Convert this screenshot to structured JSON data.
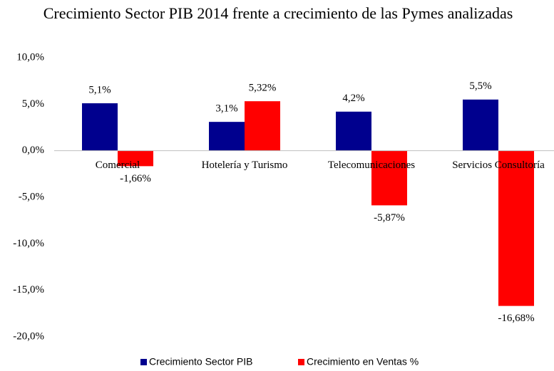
{
  "chart_data": {
    "type": "bar",
    "title": "Crecimiento Sector PIB 2014 frente a crecimiento de las Pymes analizadas",
    "categories": [
      "Comercial",
      "Hotelería y Turismo",
      "Telecomunicaciones",
      "Servicios Consultoría"
    ],
    "series": [
      {
        "name": "Crecimiento Sector PIB",
        "color": "#00008e",
        "values": [
          5.1,
          3.1,
          4.2,
          5.5
        ],
        "value_labels": [
          "5,1%",
          "3,1%",
          "4,2%",
          "5,5%"
        ]
      },
      {
        "name": "Crecimiento en Ventas %",
        "color": "#ff0000",
        "values": [
          -1.66,
          5.32,
          -5.87,
          -16.68
        ],
        "value_labels": [
          "-1,66%",
          "5,32%",
          "-5,87%",
          "-16,68%"
        ]
      }
    ],
    "ylim": [
      -20,
      10
    ],
    "yticks": [
      {
        "value": -20,
        "label": "-20,0%"
      },
      {
        "value": -15,
        "label": "-15,0%"
      },
      {
        "value": -10,
        "label": "-10,0%"
      },
      {
        "value": -5,
        "label": "-5,0%"
      },
      {
        "value": 0,
        "label": "0,0%"
      },
      {
        "value": 5,
        "label": "5,0%"
      },
      {
        "value": 10,
        "label": "10,0%"
      }
    ],
    "grid": false,
    "legend": "bottom"
  }
}
